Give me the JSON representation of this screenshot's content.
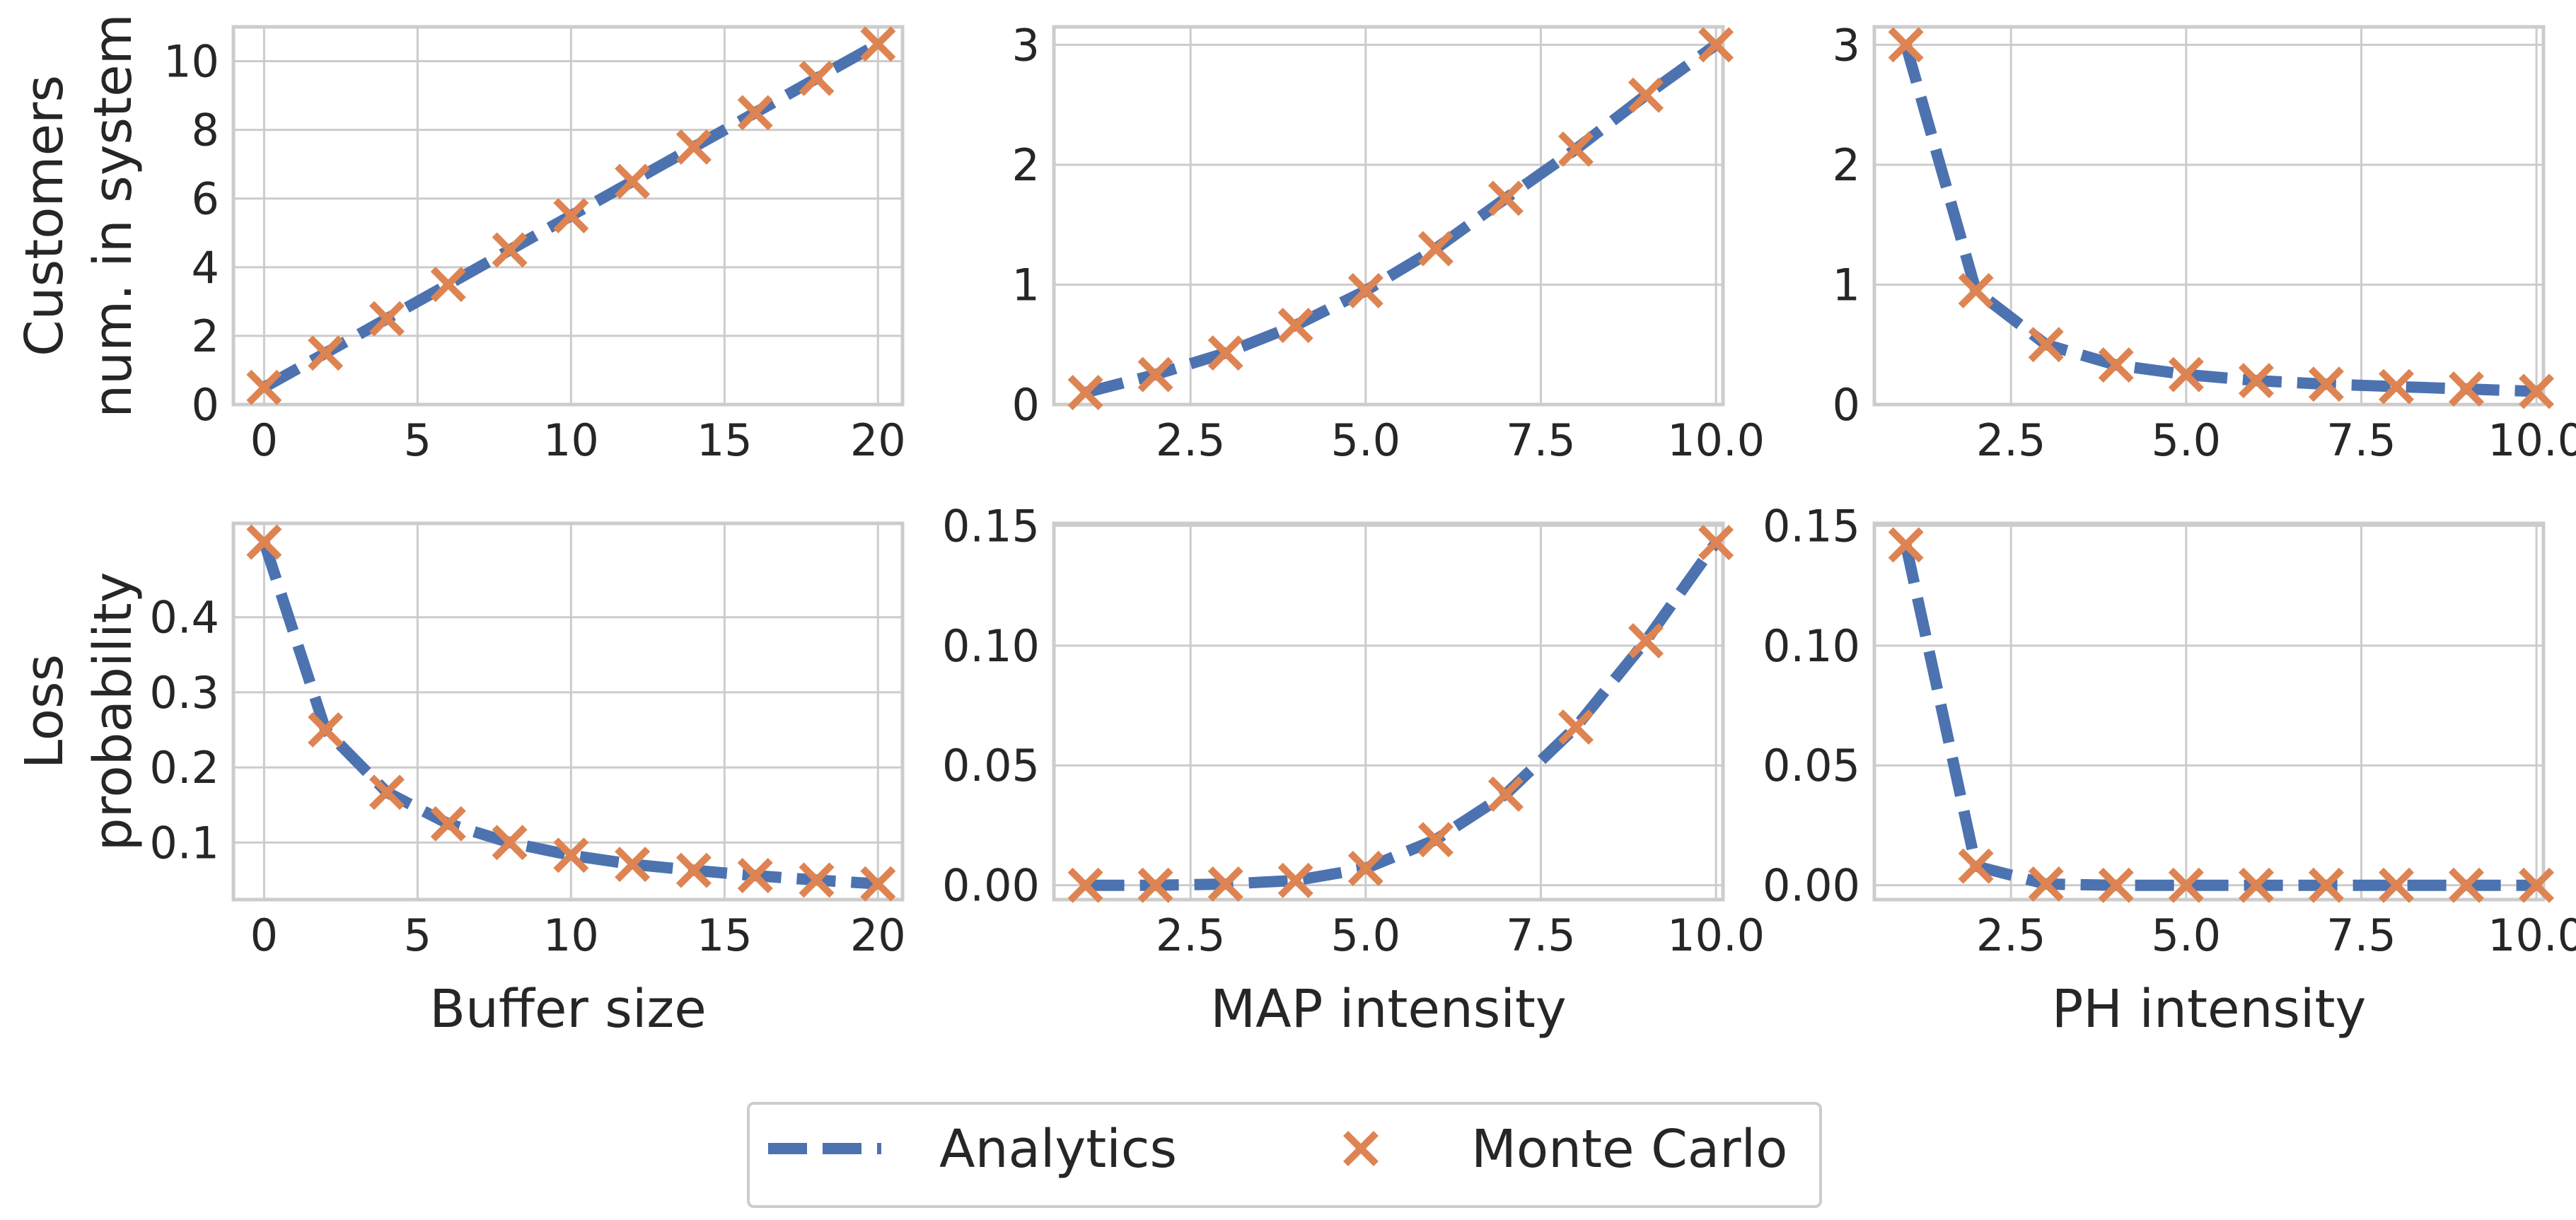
{
  "colors": {
    "analytics": "#4c72b0",
    "montecarlo": "#dd8452",
    "grid": "#cccccc",
    "frame": "#cccccc",
    "text": "#262626"
  },
  "legend": {
    "analytics_label": "Analytics",
    "montecarlo_label": "Monte Carlo",
    "placement": "bottom-center"
  },
  "chart_data": [
    {
      "type": "line",
      "row": 0,
      "col": 0,
      "xlabel": "",
      "ylabel_lines": [
        "Customers",
        "num. in system"
      ],
      "xlim": [
        -1,
        20.8
      ],
      "ylim": [
        0,
        11
      ],
      "xticks": [
        0,
        5,
        10,
        15,
        20
      ],
      "xtick_labels": [
        "0",
        "5",
        "10",
        "15",
        "20"
      ],
      "yticks": [
        0,
        2,
        4,
        6,
        8,
        10
      ],
      "ytick_labels": [
        "0",
        "2",
        "4",
        "6",
        "8",
        "10"
      ],
      "x": [
        0,
        2,
        4,
        6,
        8,
        10,
        12,
        14,
        16,
        18,
        20
      ],
      "series": [
        {
          "name": "Analytics",
          "values": [
            0.5,
            1.5,
            2.5,
            3.5,
            4.5,
            5.5,
            6.5,
            7.5,
            8.5,
            9.5,
            10.5
          ]
        },
        {
          "name": "Monte Carlo",
          "values": [
            0.5,
            1.5,
            2.5,
            3.5,
            4.5,
            5.5,
            6.5,
            7.5,
            8.5,
            9.5,
            10.5
          ]
        }
      ]
    },
    {
      "type": "line",
      "row": 0,
      "col": 1,
      "xlabel": "",
      "ylabel_lines": [],
      "xlim": [
        0.55,
        10.1
      ],
      "ylim": [
        0,
        3.15
      ],
      "xticks": [
        2.5,
        5.0,
        7.5,
        10.0
      ],
      "xtick_labels": [
        "2.5",
        "5.0",
        "7.5",
        "10.0"
      ],
      "yticks": [
        0,
        1,
        2,
        3
      ],
      "ytick_labels": [
        "0",
        "1",
        "2",
        "3"
      ],
      "x": [
        1,
        2,
        3,
        4,
        5,
        6,
        7,
        8,
        9,
        10
      ],
      "series": [
        {
          "name": "Analytics",
          "values": [
            0.1,
            0.25,
            0.43,
            0.66,
            0.95,
            1.3,
            1.72,
            2.13,
            2.58,
            3.0
          ]
        },
        {
          "name": "Monte Carlo",
          "values": [
            0.1,
            0.25,
            0.43,
            0.66,
            0.95,
            1.3,
            1.72,
            2.13,
            2.58,
            3.0
          ]
        }
      ]
    },
    {
      "type": "line",
      "row": 0,
      "col": 2,
      "xlabel": "",
      "ylabel_lines": [],
      "xlim": [
        0.55,
        10.1
      ],
      "ylim": [
        0,
        3.15
      ],
      "xticks": [
        2.5,
        5.0,
        7.5,
        10.0
      ],
      "xtick_labels": [
        "2.5",
        "5.0",
        "7.5",
        "10.0"
      ],
      "yticks": [
        0,
        1,
        2,
        3
      ],
      "ytick_labels": [
        "0",
        "1",
        "2",
        "3"
      ],
      "x": [
        1,
        2,
        3,
        4,
        5,
        6,
        7,
        8,
        9,
        10
      ],
      "series": [
        {
          "name": "Analytics",
          "values": [
            3.0,
            0.95,
            0.5,
            0.33,
            0.25,
            0.2,
            0.17,
            0.15,
            0.13,
            0.11
          ]
        },
        {
          "name": "Monte Carlo",
          "values": [
            3.0,
            0.95,
            0.5,
            0.33,
            0.25,
            0.2,
            0.17,
            0.15,
            0.13,
            0.11
          ]
        }
      ]
    },
    {
      "type": "line",
      "row": 1,
      "col": 0,
      "xlabel": "Buffer size",
      "ylabel_lines": [
        "Loss",
        "probability"
      ],
      "xlim": [
        -1,
        20.8
      ],
      "ylim": [
        0.024,
        0.525
      ],
      "xticks": [
        0,
        5,
        10,
        15,
        20
      ],
      "xtick_labels": [
        "0",
        "5",
        "10",
        "15",
        "20"
      ],
      "yticks": [
        0.1,
        0.2,
        0.3,
        0.4
      ],
      "ytick_labels": [
        "0.1",
        "0.2",
        "0.3",
        "0.4"
      ],
      "x": [
        0,
        2,
        4,
        6,
        8,
        10,
        12,
        14,
        16,
        18,
        20
      ],
      "series": [
        {
          "name": "Analytics",
          "values": [
            0.5,
            0.25,
            0.167,
            0.125,
            0.1,
            0.083,
            0.071,
            0.063,
            0.056,
            0.05,
            0.045
          ]
        },
        {
          "name": "Monte Carlo",
          "values": [
            0.5,
            0.25,
            0.167,
            0.125,
            0.1,
            0.083,
            0.071,
            0.063,
            0.056,
            0.05,
            0.045
          ]
        }
      ]
    },
    {
      "type": "line",
      "row": 1,
      "col": 1,
      "xlabel": "MAP intensity",
      "ylabel_lines": [],
      "xlim": [
        0.55,
        10.1
      ],
      "ylim": [
        -0.006,
        0.151
      ],
      "xticks": [
        2.5,
        5.0,
        7.5,
        10.0
      ],
      "xtick_labels": [
        "2.5",
        "5.0",
        "7.5",
        "10.0"
      ],
      "yticks": [
        0,
        0.05,
        0.1,
        0.15
      ],
      "ytick_labels": [
        "0.00",
        "0.05",
        "0.10",
        "0.15"
      ],
      "x": [
        1,
        2,
        3,
        4,
        5,
        6,
        7,
        8,
        9,
        10
      ],
      "series": [
        {
          "name": "Analytics",
          "values": [
            0.0,
            0.0,
            0.0005,
            0.002,
            0.007,
            0.019,
            0.038,
            0.066,
            0.102,
            0.143
          ]
        },
        {
          "name": "Monte Carlo",
          "values": [
            0.0,
            0.0,
            0.0005,
            0.002,
            0.007,
            0.019,
            0.038,
            0.066,
            0.102,
            0.143
          ]
        }
      ]
    },
    {
      "type": "line",
      "row": 1,
      "col": 2,
      "xlabel": "PH intensity",
      "ylabel_lines": [],
      "xlim": [
        0.55,
        10.1
      ],
      "ylim": [
        -0.006,
        0.151
      ],
      "xticks": [
        2.5,
        5.0,
        7.5,
        10.0
      ],
      "xtick_labels": [
        "2.5",
        "5.0",
        "7.5",
        "10.0"
      ],
      "yticks": [
        0,
        0.05,
        0.1,
        0.15
      ],
      "ytick_labels": [
        "0.00",
        "0.05",
        "0.10",
        "0.15"
      ],
      "x": [
        1,
        2,
        3,
        4,
        5,
        6,
        7,
        8,
        9,
        10
      ],
      "series": [
        {
          "name": "Analytics",
          "values": [
            0.142,
            0.008,
            0.0005,
            0.0,
            0.0,
            0.0,
            0.0,
            0.0,
            0.0,
            0.0
          ]
        },
        {
          "name": "Monte Carlo",
          "values": [
            0.142,
            0.008,
            0.0005,
            0.0,
            0.0,
            0.0,
            0.0,
            0.0,
            0.0,
            0.0
          ]
        }
      ]
    }
  ]
}
